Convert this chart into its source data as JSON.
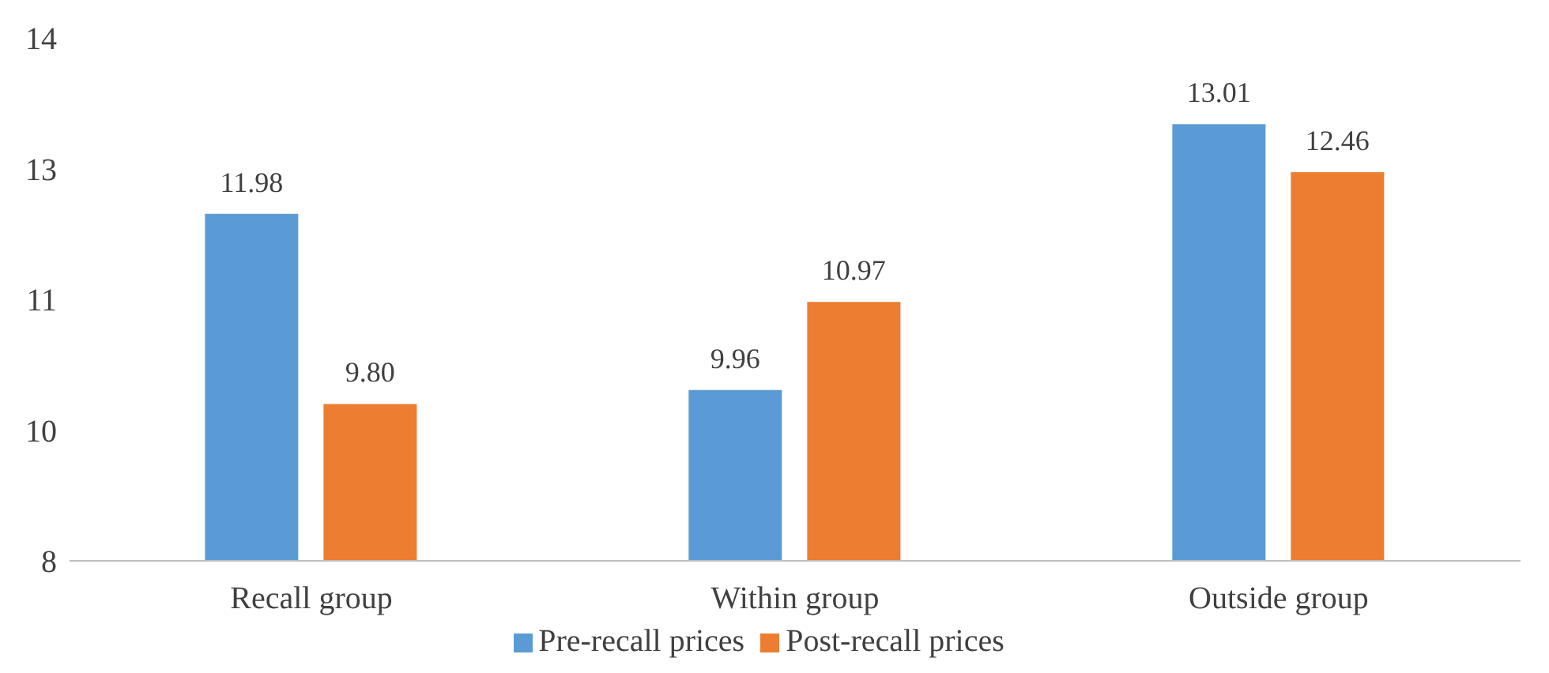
{
  "chart_data": {
    "type": "bar",
    "categories": [
      "Recall group",
      "Within group",
      "Outside group"
    ],
    "series": [
      {
        "name": "Pre-recall prices",
        "color": "#5b9bd5",
        "values": [
          11.98,
          9.96,
          13.01
        ],
        "value_labels": [
          "11.98",
          "9.96",
          "13.01"
        ]
      },
      {
        "name": "Post-recall prices",
        "color": "#ed7d31",
        "values": [
          9.8,
          10.97,
          12.46
        ],
        "value_labels": [
          "9.80",
          "10.97",
          "12.46"
        ]
      }
    ],
    "ylim": [
      8,
      14
    ],
    "yticks": [
      8,
      {
        "value": 9.5,
        "label": "10"
      },
      11,
      {
        "value": 12.5,
        "label": "13"
      },
      14
    ],
    "grid": false,
    "legend": "bottom"
  }
}
